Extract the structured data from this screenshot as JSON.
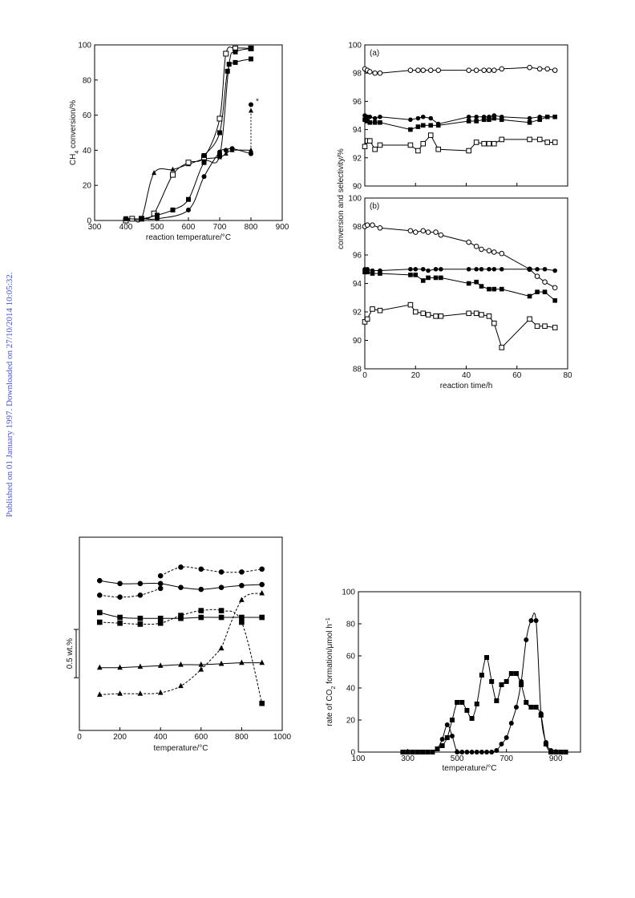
{
  "page": {
    "side_note": "Published on 01 January 1997. Downloaded on 27/10/2014 10:05:32."
  },
  "chart_data": [
    {
      "id": "fig1",
      "type": "line",
      "xlabel": "reaction temperature/°C",
      "ylabel": "CH4 conversion/%",
      "xlim": [
        300,
        900
      ],
      "ylim": [
        0,
        100
      ],
      "xticks": [
        300,
        400,
        500,
        600,
        700,
        800,
        900
      ],
      "yticks": [
        0,
        20,
        40,
        60,
        80,
        100
      ],
      "annotation": "*",
      "series": [
        {
          "marker": "triangle",
          "line": "solid",
          "x": [
            400,
            420,
            450,
            490,
            550,
            600,
            650,
            700,
            720,
            740,
            800
          ],
          "y": [
            1,
            1,
            1,
            27,
            29,
            32,
            35,
            36,
            38,
            40,
            40
          ]
        },
        {
          "marker": "circle",
          "line": "solid",
          "x": [
            400,
            450,
            500,
            600,
            650,
            700,
            720,
            740,
            800
          ],
          "y": [
            0,
            1,
            1,
            6,
            25,
            39,
            40,
            41,
            38
          ]
        },
        {
          "marker": "open-square",
          "line": "solid",
          "x": [
            400,
            420,
            450,
            490,
            550,
            600,
            650,
            700,
            720,
            750,
            800
          ],
          "y": [
            0,
            1,
            1,
            4,
            26,
            33,
            36,
            58,
            95,
            98,
            98
          ]
        },
        {
          "marker": "square",
          "line": "solid",
          "x": [
            400,
            450,
            500,
            550,
            600,
            650,
            700,
            730,
            750,
            800
          ],
          "y": [
            1,
            1,
            3,
            6,
            12,
            33,
            37,
            89,
            96,
            98
          ]
        },
        {
          "marker": "square",
          "line": "solid",
          "x": [
            650,
            700,
            725,
            750,
            800
          ],
          "y": [
            37,
            50,
            85,
            90,
            92
          ]
        }
      ],
      "arrow": {
        "x": 800,
        "y_from": 38,
        "y_to": 66
      },
      "starred_point": {
        "x": 800,
        "y": 66
      }
    },
    {
      "id": "fig2a",
      "type": "line",
      "label": "(a)",
      "xlim": [
        0,
        80
      ],
      "ylim": [
        90,
        100
      ],
      "yticks": [
        90,
        92,
        94,
        96,
        98,
        100
      ],
      "series": [
        {
          "marker": "open-circle",
          "x": [
            0,
            1,
            2,
            4,
            6,
            18,
            21,
            23,
            26,
            29,
            41,
            44,
            47,
            49,
            51,
            54,
            65,
            69,
            72,
            75
          ],
          "y": [
            98.3,
            98.2,
            98.1,
            98,
            98,
            98.2,
            98.2,
            98.2,
            98.2,
            98.2,
            98.2,
            98.2,
            98.2,
            98.2,
            98.2,
            98.3,
            98.4,
            98.3,
            98.3,
            98.2
          ]
        },
        {
          "marker": "circle",
          "x": [
            0,
            1,
            2,
            4,
            6,
            18,
            21,
            23,
            26,
            29,
            41,
            44,
            47,
            49,
            51,
            54,
            65,
            69,
            72,
            75
          ],
          "y": [
            95,
            94.9,
            94.9,
            94.8,
            94.9,
            94.7,
            94.8,
            94.9,
            94.8,
            94.4,
            94.9,
            94.9,
            94.9,
            94.9,
            95,
            94.9,
            94.8,
            94.9,
            94.9,
            94.9
          ]
        },
        {
          "marker": "square",
          "x": [
            0,
            1,
            2,
            4,
            6,
            18,
            21,
            23,
            26,
            29,
            41,
            44,
            47,
            49,
            51,
            54,
            65,
            69,
            72,
            75
          ],
          "y": [
            94.7,
            94.6,
            94.5,
            94.5,
            94.5,
            94,
            94.2,
            94.3,
            94.3,
            94.3,
            94.6,
            94.6,
            94.7,
            94.7,
            94.8,
            94.7,
            94.5,
            94.7,
            94.9,
            94.9
          ]
        },
        {
          "marker": "open-square",
          "x": [
            0,
            1,
            2,
            4,
            6,
            18,
            21,
            23,
            26,
            29,
            41,
            44,
            47,
            49,
            51,
            54,
            65,
            69,
            72,
            75
          ],
          "y": [
            92.8,
            93.2,
            93.2,
            92.6,
            92.9,
            92.9,
            92.5,
            93.0,
            93.6,
            92.6,
            92.5,
            93.1,
            93.0,
            93.0,
            93.0,
            93.3,
            93.3,
            93.3,
            93.1,
            93.1
          ]
        }
      ]
    },
    {
      "id": "fig2b",
      "type": "line",
      "label": "(b)",
      "xlabel": "reaction time/h",
      "ylabel": "conversion and selectivity/%",
      "xlim": [
        0,
        80
      ],
      "ylim": [
        88,
        100
      ],
      "xticks": [
        0,
        20,
        40,
        60,
        80
      ],
      "yticks": [
        88,
        90,
        92,
        94,
        96,
        98,
        100
      ],
      "series": [
        {
          "marker": "open-circle",
          "x": [
            0,
            1,
            3,
            6,
            18,
            20,
            23,
            25,
            28,
            30,
            41,
            44,
            46,
            49,
            51,
            54,
            65,
            68,
            71,
            75
          ],
          "y": [
            98.0,
            98.1,
            98.1,
            97.9,
            97.7,
            97.6,
            97.7,
            97.6,
            97.6,
            97.4,
            96.9,
            96.6,
            96.4,
            96.3,
            96.2,
            96.1,
            95.0,
            94.5,
            94.1,
            93.7
          ]
        },
        {
          "marker": "circle",
          "x": [
            0,
            1,
            3,
            6,
            18,
            20,
            23,
            25,
            28,
            30,
            41,
            44,
            46,
            49,
            51,
            54,
            65,
            68,
            71,
            75
          ],
          "y": [
            95,
            95,
            94.9,
            94.9,
            95,
            95,
            95,
            94.9,
            95,
            95,
            95,
            95,
            95,
            95,
            95,
            95,
            95,
            95,
            95,
            94.9
          ]
        },
        {
          "marker": "square",
          "x": [
            0,
            1,
            3,
            6,
            18,
            20,
            23,
            25,
            28,
            30,
            41,
            44,
            46,
            49,
            51,
            54,
            65,
            68,
            71,
            75
          ],
          "y": [
            94.8,
            94.8,
            94.7,
            94.7,
            94.6,
            94.6,
            94.2,
            94.4,
            94.4,
            94.4,
            94.0,
            94.1,
            93.8,
            93.6,
            93.6,
            93.6,
            93.1,
            93.4,
            93.4,
            92.8
          ]
        },
        {
          "marker": "open-square",
          "x": [
            0,
            1,
            3,
            6,
            18,
            20,
            23,
            25,
            28,
            30,
            41,
            44,
            46,
            49,
            51,
            54,
            65,
            68,
            71,
            75
          ],
          "y": [
            91.3,
            91.5,
            92.2,
            92.1,
            92.5,
            92,
            91.9,
            91.8,
            91.7,
            91.7,
            91.9,
            91.9,
            91.8,
            91.7,
            91.2,
            89.5,
            91.5,
            91.0,
            91.0,
            90.9
          ]
        }
      ]
    },
    {
      "id": "fig3",
      "type": "line",
      "xlabel": "temperature/°C",
      "scale_bar_label": "0.5 wt.%",
      "xlim": [
        0,
        1000
      ],
      "xticks": [
        0,
        200,
        400,
        600,
        800,
        1000
      ],
      "y_units": "wt.% (relative, offset traces)",
      "scale_bar_value": 0.5,
      "series": [
        {
          "marker": "circle",
          "line": "dashed",
          "x": [
            400,
            500,
            600,
            700,
            800,
            900
          ],
          "y": [
            1.6,
            1.69,
            1.67,
            1.64,
            1.64,
            1.67
          ]
        },
        {
          "marker": "circle",
          "line": "solid",
          "x": [
            100,
            200,
            300,
            400,
            500,
            600,
            700,
            800,
            900
          ],
          "y": [
            1.55,
            1.52,
            1.52,
            1.52,
            1.48,
            1.46,
            1.48,
            1.5,
            1.51
          ]
        },
        {
          "marker": "circle",
          "line": "dashed",
          "x": [
            100,
            200,
            300,
            400
          ],
          "y": [
            1.4,
            1.38,
            1.4,
            1.47
          ]
        },
        {
          "marker": "square",
          "line": "solid",
          "x": [
            100,
            200,
            300,
            400,
            500,
            600,
            700,
            800,
            900
          ],
          "y": [
            1.22,
            1.17,
            1.16,
            1.16,
            1.16,
            1.17,
            1.17,
            1.17,
            1.17
          ]
        },
        {
          "marker": "square",
          "line": "dashed",
          "x": [
            100,
            200,
            300,
            400,
            500,
            600,
            700,
            800,
            900
          ],
          "y": [
            1.12,
            1.11,
            1.1,
            1.11,
            1.19,
            1.24,
            1.24,
            1.12,
            0.28
          ]
        },
        {
          "marker": "triangle",
          "line": "dashed",
          "x": [
            700,
            800,
            900
          ],
          "y": [
            0.85,
            1.35,
            1.42
          ]
        },
        {
          "marker": "triangle",
          "line": "solid",
          "x": [
            100,
            200,
            300,
            400,
            500,
            600,
            700,
            800,
            900
          ],
          "y": [
            0.65,
            0.65,
            0.66,
            0.67,
            0.68,
            0.68,
            0.69,
            0.7,
            0.7
          ]
        },
        {
          "marker": "triangle",
          "line": "dashed",
          "x": [
            100,
            200,
            300,
            400,
            500,
            600,
            700
          ],
          "y": [
            0.37,
            0.38,
            0.38,
            0.39,
            0.46,
            0.63,
            0.85
          ]
        }
      ]
    },
    {
      "id": "fig4",
      "type": "line",
      "xlabel": "temperature/°C",
      "ylabel": "rate of CO2 formation/μmol h⁻¹",
      "xlim": [
        100,
        1000
      ],
      "ylim": [
        0,
        100
      ],
      "xticks": [
        100,
        300,
        500,
        700,
        900
      ],
      "yticks": [
        0,
        20,
        40,
        60,
        80,
        100
      ],
      "series": [
        {
          "marker": "square",
          "x": [
            280,
            300,
            320,
            340,
            360,
            380,
            400,
            420,
            440,
            460,
            480,
            500,
            520,
            540,
            560,
            580,
            600,
            620,
            640,
            660,
            680,
            700,
            720,
            740,
            760,
            780,
            800,
            820,
            840,
            860,
            880,
            900,
            920,
            940
          ],
          "y": [
            0,
            0,
            0,
            0,
            0,
            0,
            0,
            2,
            4,
            9,
            20,
            31,
            31,
            26,
            21,
            30,
            48,
            59,
            44,
            32,
            42,
            44,
            49,
            49,
            42,
            31,
            28,
            28,
            23,
            5,
            0,
            0,
            0,
            0
          ]
        },
        {
          "marker": "circle",
          "x": [
            400,
            420,
            440,
            460,
            480,
            500,
            520,
            540,
            560,
            580,
            600,
            620,
            640,
            660,
            680,
            700,
            720,
            740,
            760,
            780,
            800,
            820,
            840,
            860,
            880
          ],
          "y": [
            0,
            2,
            8,
            17,
            10,
            0,
            0,
            0,
            0,
            0,
            0,
            0,
            0,
            1,
            5,
            9,
            18,
            28,
            44,
            70,
            82,
            82,
            24,
            6,
            1
          ]
        }
      ]
    }
  ]
}
